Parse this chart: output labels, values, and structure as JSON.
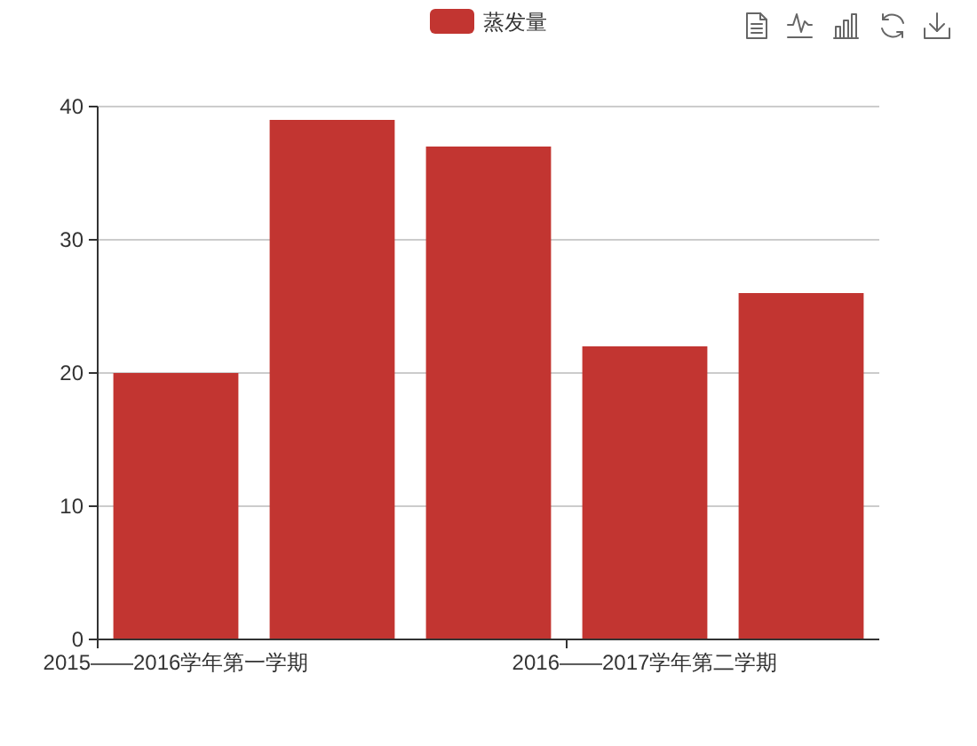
{
  "chart_data": {
    "type": "bar",
    "categories": [
      "2015——2016学年第一学期",
      null,
      null,
      "2016——2017学年第二学期",
      null
    ],
    "series": [
      {
        "name": "蒸发量",
        "color": "#c23531",
        "values": [
          20,
          39,
          37,
          22,
          26
        ]
      }
    ],
    "ylim": [
      0,
      40
    ],
    "yticks": [
      0,
      10,
      20,
      30,
      40
    ],
    "grid": "y",
    "legend": "top"
  }
}
